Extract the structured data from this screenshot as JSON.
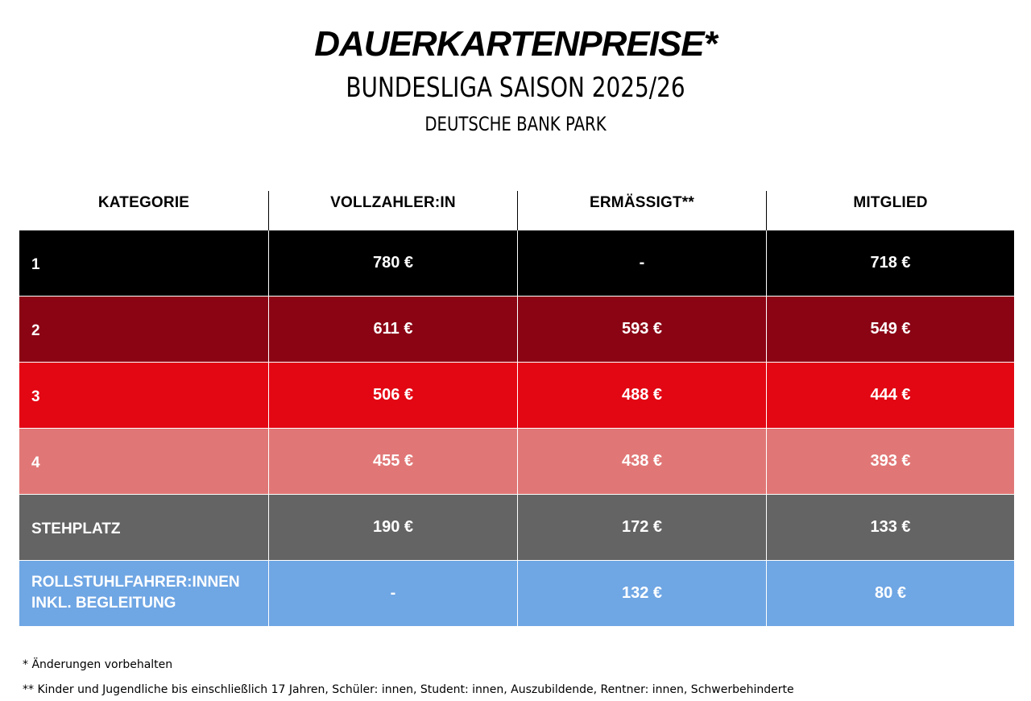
{
  "header": {
    "title": "DAUERKARTENPREISE*",
    "subtitle": "BUNDESLIGA SAISON 2025/26",
    "venue": "DEUTSCHE BANK PARK"
  },
  "table": {
    "columns": [
      "KATEGORIE",
      "VOLLZAHLER:IN",
      "ERMÄSSIGT**",
      "MITGLIED"
    ],
    "rows": [
      {
        "category": "1",
        "vollzahler": "780 €",
        "ermaessigt": "-",
        "mitglied": "718 €",
        "color": "#000000"
      },
      {
        "category": "2",
        "vollzahler": "611 €",
        "ermaessigt": "593 €",
        "mitglied": "549 €",
        "color": "#8b0414"
      },
      {
        "category": "3",
        "vollzahler": "506 €",
        "ermaessigt": "488 €",
        "mitglied": "444 €",
        "color": "#e30613"
      },
      {
        "category": "4",
        "vollzahler": "455 €",
        "ermaessigt": "438 €",
        "mitglied": "393 €",
        "color": "#e07776"
      },
      {
        "category": "STEHPLATZ",
        "vollzahler": "190 €",
        "ermaessigt": "172 €",
        "mitglied": "133 €",
        "color": "#646464"
      },
      {
        "category_line1": "ROLLSTUHLFAHRER:INNEN",
        "category_line2": "INKL. BEGLEITUNG",
        "vollzahler": "-",
        "ermaessigt": "132 €",
        "mitglied": "80 €",
        "color": "#6fa6e4"
      }
    ]
  },
  "footnotes": {
    "note1": "*  Änderungen vorbehalten",
    "note2": "** Kinder und Jugendliche bis einschließlich 17 Jahren, Schüler: innen, Student: innen,  Auszubildende, Rentner: innen, Schwerbehinderte"
  }
}
